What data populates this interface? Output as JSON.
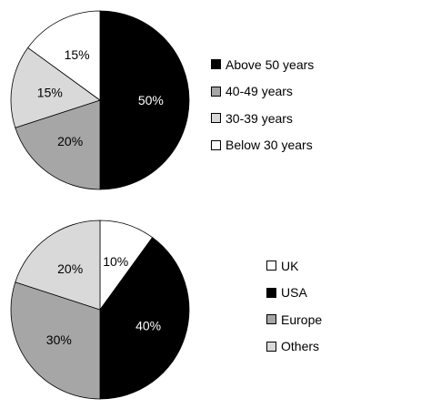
{
  "chart_data": [
    {
      "type": "pie",
      "categories": [
        "Above 50 years",
        "40-49 years",
        "30-39 years",
        "Below 30 years"
      ],
      "values": [
        50,
        20,
        15,
        15
      ],
      "labels": [
        "50%",
        "20%",
        "15%",
        "15%"
      ],
      "colors": [
        "#000000",
        "#a6a6a6",
        "#d9d9d9",
        "#ffffff"
      ],
      "label_colors": [
        "#ffffff",
        "#000000",
        "#000000",
        "#000000"
      ],
      "legend_placement": "right"
    },
    {
      "type": "pie",
      "categories": [
        "UK",
        "USA",
        "Europe",
        "Others"
      ],
      "values": [
        10,
        40,
        30,
        20
      ],
      "labels": [
        "10%",
        "40%",
        "30%",
        "20%"
      ],
      "colors": [
        "#ffffff",
        "#000000",
        "#a6a6a6",
        "#d9d9d9"
      ],
      "label_colors": [
        "#000000",
        "#ffffff",
        "#000000",
        "#000000"
      ],
      "legend_placement": "right"
    }
  ]
}
